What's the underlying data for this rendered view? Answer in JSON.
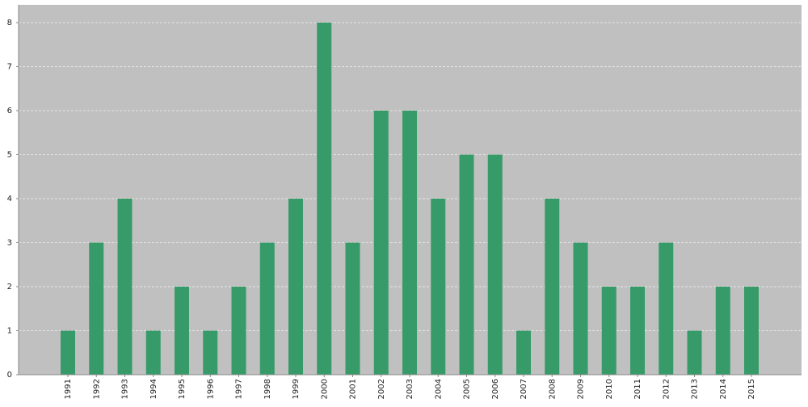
{
  "chart_data": {
    "type": "bar",
    "title": "",
    "xlabel": "",
    "ylabel": "",
    "categories": [
      "1991",
      "1992",
      "1993",
      "1994",
      "1995",
      "1996",
      "1997",
      "1998",
      "1999",
      "2000",
      "2001",
      "2002",
      "2003",
      "2004",
      "2005",
      "2006",
      "2007",
      "2008",
      "2009",
      "2010",
      "2011",
      "2012",
      "2013",
      "2014",
      "2015"
    ],
    "series": [
      {
        "values": [
          1,
          3,
          4,
          1,
          2,
          1,
          2,
          3,
          4,
          8,
          3,
          6,
          6,
          4,
          5,
          5,
          1,
          4,
          3,
          2,
          2,
          3,
          1,
          2,
          2
        ],
        "color": "#379b69"
      }
    ],
    "ylim": [
      0,
      8
    ],
    "yticks": [
      0,
      1,
      2,
      3,
      4,
      5,
      6,
      7,
      8
    ],
    "grid": true,
    "legend": "none",
    "colors": {
      "plot_background": "#c0c0c0",
      "gridline": "#e6e6e6",
      "axis": "#888888"
    }
  }
}
